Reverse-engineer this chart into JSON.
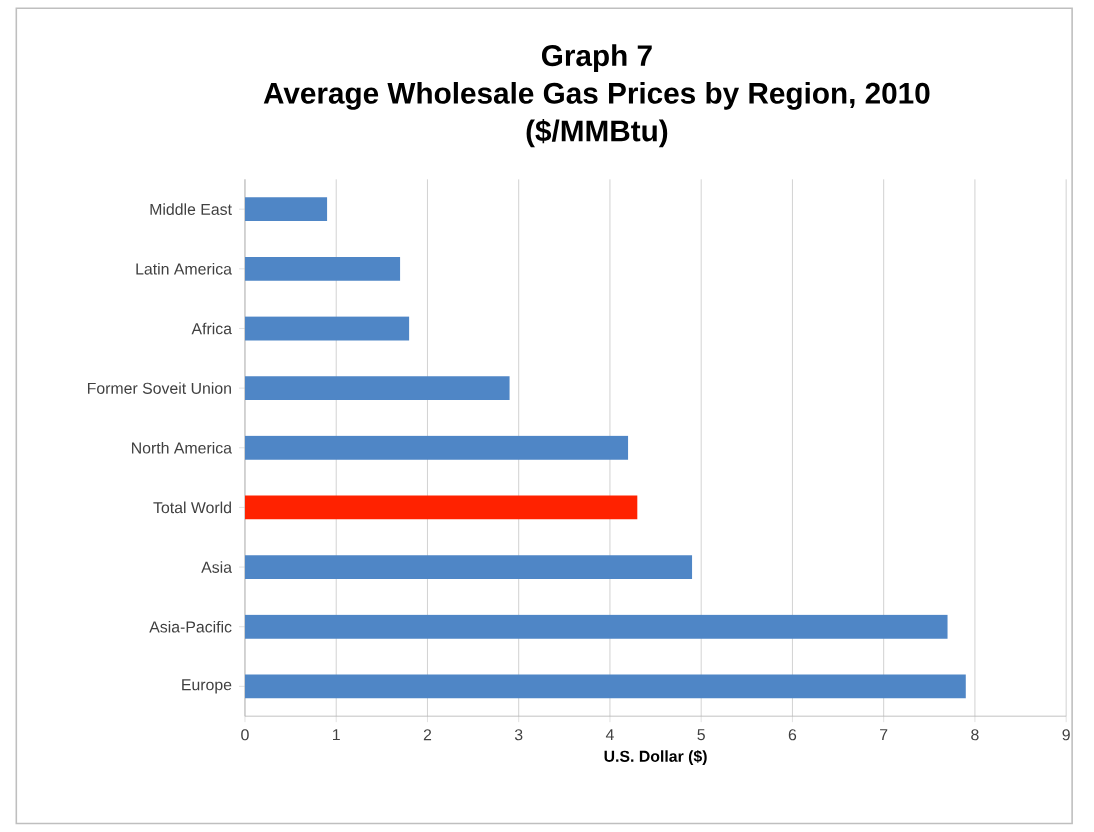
{
  "chart_data": {
    "type": "bar",
    "orientation": "horizontal",
    "title": "Graph 7\nAverage Wholesale Gas Prices by Region, 2010\n($/MMBtu)",
    "xlabel": "U.S. Dollar ($)",
    "categories": [
      "Middle East",
      "Latin America",
      "Africa",
      "Former Soveit Union",
      "North America",
      "Total World",
      "Asia",
      "Asia-Pacific",
      "Europe"
    ],
    "values": [
      0.9,
      1.7,
      1.8,
      2.9,
      4.2,
      4.3,
      4.9,
      7.7,
      7.9
    ],
    "colors": [
      "#4f86c6",
      "#4f86c6",
      "#4f86c6",
      "#4f86c6",
      "#4f86c6",
      "#ff2200",
      "#4f86c6",
      "#4f86c6",
      "#4f86c6"
    ],
    "xlim": [
      0,
      9
    ],
    "xticks": [
      0,
      1,
      2,
      3,
      4,
      5,
      6,
      7,
      8,
      9
    ],
    "grid": "x"
  }
}
